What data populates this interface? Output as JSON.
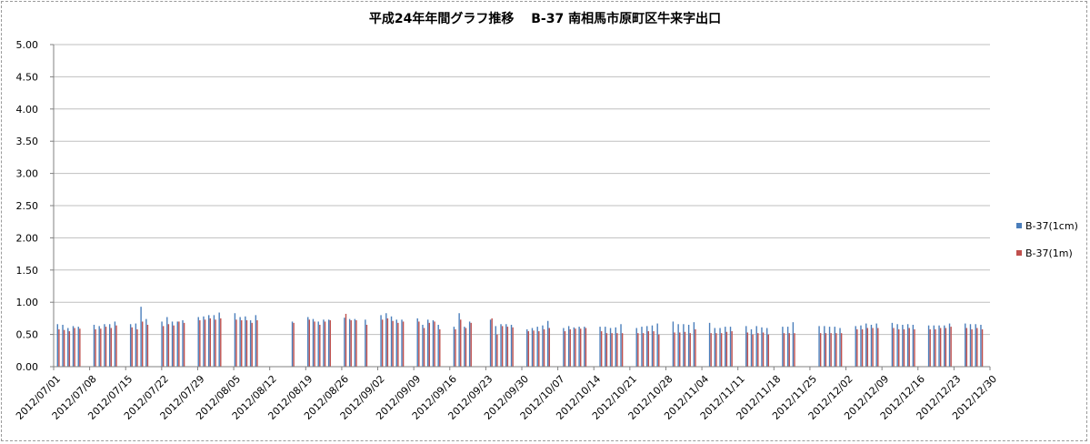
{
  "chart_data": {
    "type": "bar",
    "title": "平成24年年間グラフ推移　 B-37 南相馬市原町区牛来字出口",
    "ylim": [
      0,
      5
    ],
    "yticks": [
      "0.00",
      "0.50",
      "1.00",
      "1.50",
      "2.00",
      "2.50",
      "3.00",
      "3.50",
      "4.00",
      "4.50",
      "5.00"
    ],
    "xticks": [
      "2012/07/01",
      "2012/07/08",
      "2012/07/15",
      "2012/07/22",
      "2012/07/29",
      "2012/08/05",
      "2012/08/12",
      "2012/08/19",
      "2012/08/26",
      "2012/09/02",
      "2012/09/09",
      "2012/09/16",
      "2012/09/23",
      "2012/09/30",
      "2012/10/07",
      "2012/10/14",
      "2012/10/21",
      "2012/10/28",
      "2012/11/04",
      "2012/11/11",
      "2012/11/18",
      "2012/11/25",
      "2012/12/02",
      "2012/12/09",
      "2012/12/16",
      "2012/12/23",
      "2012/12/30"
    ],
    "legend_position": "right",
    "grid": true,
    "series": [
      {
        "name": "B-37(1cm)",
        "color": "#4a7ebb",
        "values": [
          0.66,
          0.65,
          0.6,
          0.63,
          0.62,
          null,
          null,
          0.65,
          0.63,
          0.66,
          0.66,
          0.7,
          null,
          null,
          0.66,
          0.67,
          0.93,
          0.74,
          null,
          null,
          0.7,
          0.77,
          0.7,
          0.7,
          0.72,
          null,
          null,
          0.77,
          0.78,
          0.8,
          0.8,
          0.84,
          null,
          null,
          0.83,
          0.77,
          0.78,
          0.72,
          0.8,
          null,
          null,
          null,
          null,
          null,
          null,
          0.7,
          null,
          null,
          0.77,
          0.74,
          0.7,
          0.73,
          0.73,
          null,
          null,
          0.76,
          0.74,
          0.74,
          null,
          0.73,
          null,
          null,
          0.8,
          0.83,
          0.78,
          0.73,
          0.73,
          null,
          null,
          0.75,
          0.65,
          0.73,
          0.72,
          0.65,
          null,
          null,
          0.62,
          0.83,
          0.62,
          0.7,
          null,
          null,
          null,
          0.73,
          0.63,
          0.66,
          0.66,
          0.65,
          null,
          null,
          0.58,
          0.6,
          0.62,
          0.64,
          0.71,
          null,
          null,
          0.6,
          0.63,
          0.61,
          0.62,
          0.62,
          null,
          null,
          0.62,
          0.62,
          0.6,
          0.61,
          0.66,
          null,
          null,
          0.6,
          0.62,
          0.63,
          0.64,
          0.67,
          null,
          null,
          0.7,
          0.66,
          0.66,
          0.65,
          0.69,
          null,
          null,
          0.68,
          0.6,
          0.6,
          0.62,
          0.62,
          null,
          null,
          0.63,
          0.58,
          0.63,
          0.61,
          0.6,
          null,
          null,
          0.62,
          0.62,
          0.69,
          null,
          null,
          null,
          null,
          0.63,
          0.63,
          0.62,
          0.62,
          0.6,
          null,
          null,
          0.63,
          0.64,
          0.67,
          0.65,
          0.67,
          null,
          null,
          0.68,
          0.66,
          0.65,
          0.66,
          0.65,
          null,
          null,
          0.64,
          0.64,
          0.64,
          0.64,
          0.67,
          null,
          null,
          0.67,
          0.66,
          0.66,
          0.65,
          null
        ]
      },
      {
        "name": "B-37(1m)",
        "color": "#c0504d",
        "values": [
          0.58,
          0.57,
          0.55,
          0.6,
          0.59,
          null,
          null,
          0.58,
          0.59,
          0.62,
          0.6,
          0.64,
          null,
          null,
          0.61,
          0.58,
          0.7,
          0.65,
          null,
          null,
          0.63,
          0.66,
          0.64,
          0.7,
          0.68,
          null,
          null,
          0.72,
          0.73,
          0.75,
          0.73,
          0.75,
          null,
          null,
          0.73,
          0.72,
          0.72,
          0.68,
          0.72,
          null,
          null,
          null,
          null,
          null,
          null,
          0.68,
          null,
          null,
          0.73,
          0.7,
          0.65,
          0.7,
          0.72,
          null,
          null,
          0.82,
          0.72,
          0.72,
          null,
          0.65,
          null,
          null,
          0.73,
          0.75,
          0.71,
          0.68,
          0.7,
          null,
          null,
          0.7,
          0.6,
          0.68,
          0.7,
          0.58,
          null,
          null,
          0.58,
          0.73,
          0.6,
          0.68,
          null,
          null,
          null,
          0.75,
          0.5,
          0.63,
          0.62,
          0.61,
          null,
          null,
          0.55,
          0.56,
          0.55,
          0.58,
          0.6,
          null,
          null,
          0.55,
          0.58,
          0.59,
          0.59,
          0.6,
          null,
          null,
          0.55,
          0.52,
          0.52,
          0.52,
          0.52,
          null,
          null,
          0.52,
          0.52,
          0.55,
          0.55,
          0.5,
          null,
          null,
          0.53,
          0.53,
          0.54,
          0.52,
          0.58,
          null,
          null,
          0.52,
          0.52,
          0.52,
          0.54,
          0.55,
          null,
          null,
          0.53,
          0.5,
          0.52,
          0.53,
          0.5,
          null,
          null,
          0.52,
          0.52,
          0.52,
          null,
          null,
          null,
          null,
          0.52,
          0.52,
          0.52,
          0.52,
          0.52,
          null,
          null,
          0.58,
          0.58,
          0.6,
          0.6,
          0.6,
          null,
          null,
          0.6,
          0.58,
          0.58,
          0.6,
          0.58,
          null,
          null,
          0.58,
          0.58,
          0.6,
          0.6,
          0.62,
          null,
          null,
          0.6,
          0.58,
          0.6,
          0.58,
          null
        ]
      }
    ]
  }
}
